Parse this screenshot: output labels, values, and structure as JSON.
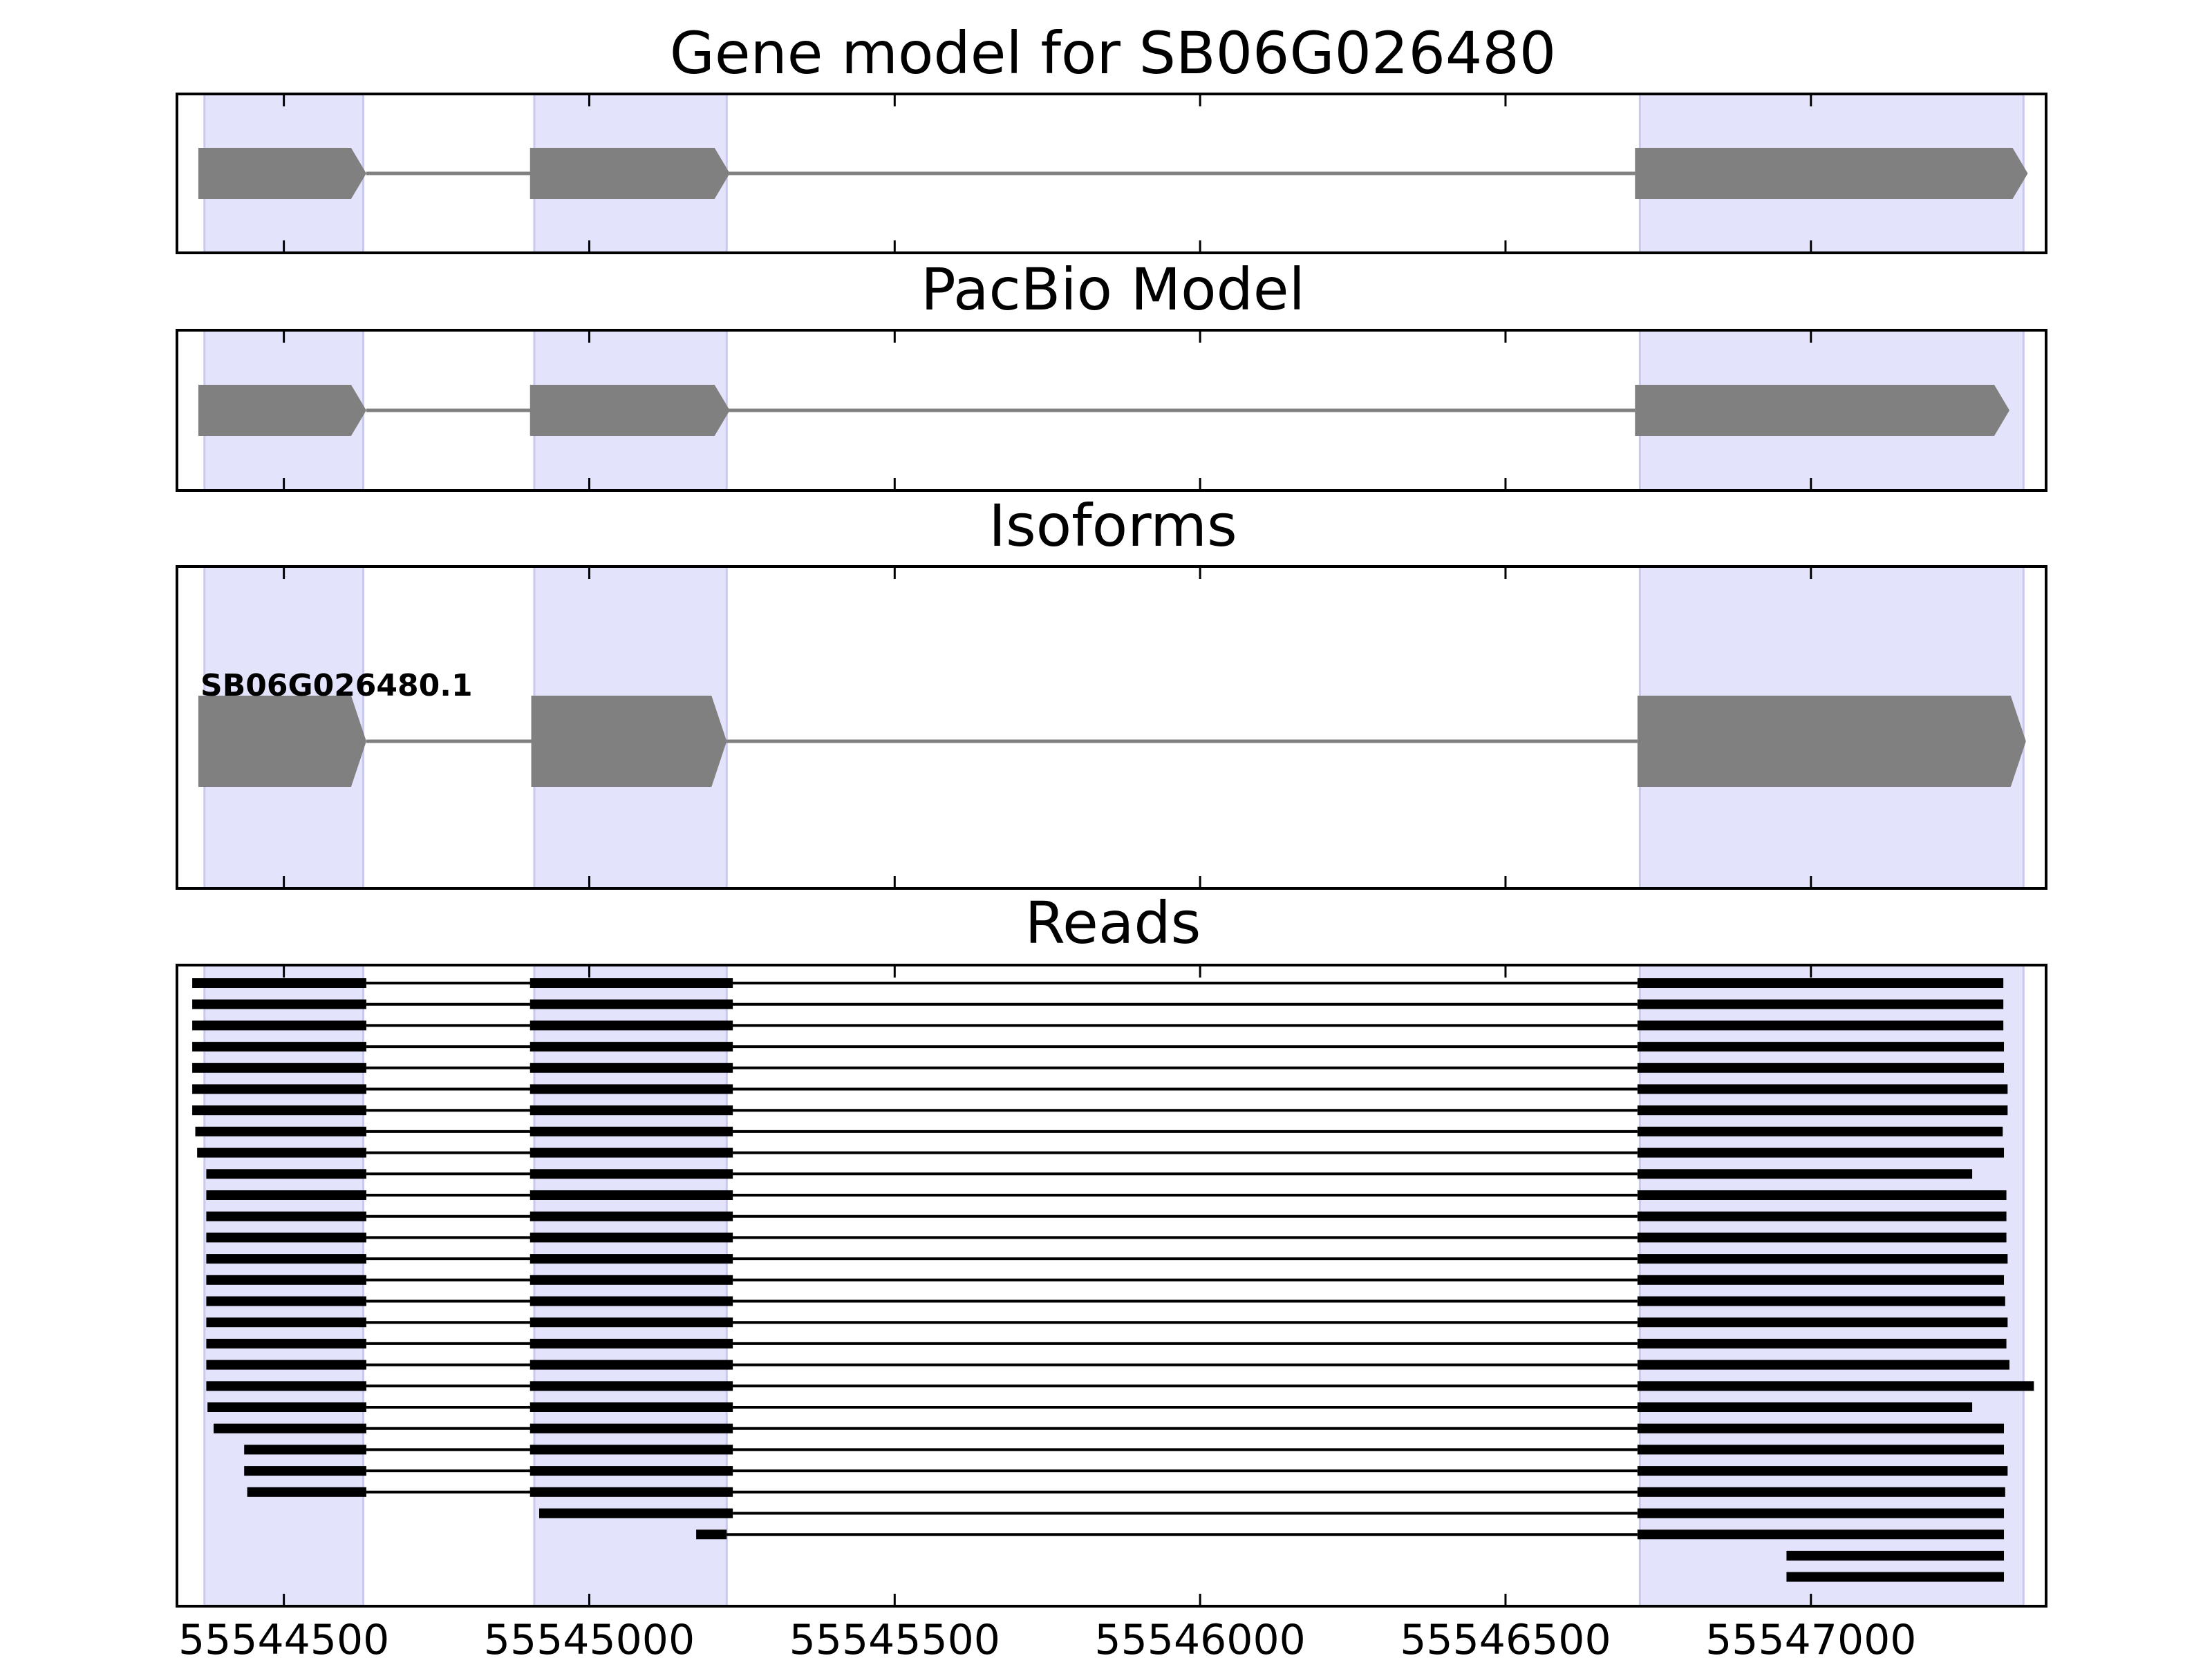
{
  "chart_data": {
    "type": "gene-structure",
    "xlim": [
      55544325,
      55547385
    ],
    "xticks": [
      55544500,
      55545000,
      55545500,
      55546000,
      55546500,
      55547000
    ],
    "exon_highlight_color": "#e3e3fc",
    "exon_highlights": [
      [
        55544370,
        55544630
      ],
      [
        55544910,
        55545225
      ],
      [
        55546720,
        55547348
      ]
    ],
    "model_color": "#808080",
    "read_color": "#000000",
    "panels": [
      {
        "title": "Gene model for SB06G026480",
        "kind": "model",
        "exons": [
          [
            55544360,
            55544635
          ],
          [
            55544903,
            55545230
          ],
          [
            55546712,
            55547355
          ]
        ],
        "strand": "+"
      },
      {
        "title": "PacBio Model",
        "kind": "model",
        "exons": [
          [
            55544360,
            55544635
          ],
          [
            55544903,
            55545230
          ],
          [
            55546712,
            55547325
          ]
        ],
        "strand": "+"
      },
      {
        "title": "Isoforms",
        "kind": "isoform",
        "isoform_name": "SB06G026480.1",
        "exons": [
          [
            55544360,
            55544635
          ],
          [
            55544905,
            55545225
          ],
          [
            55546716,
            55547352
          ]
        ],
        "strand": "+"
      },
      {
        "title": "Reads",
        "kind": "reads",
        "reads": [
          [
            [
              55544350,
              55544635
            ],
            [
              55544903,
              55545235
            ],
            [
              55546716,
              55547315
            ]
          ],
          [
            [
              55544350,
              55544635
            ],
            [
              55544903,
              55545235
            ],
            [
              55546716,
              55547315
            ]
          ],
          [
            [
              55544350,
              55544635
            ],
            [
              55544903,
              55545235
            ],
            [
              55546716,
              55547315
            ]
          ],
          [
            [
              55544350,
              55544635
            ],
            [
              55544903,
              55545235
            ],
            [
              55546716,
              55547316
            ]
          ],
          [
            [
              55544350,
              55544635
            ],
            [
              55544903,
              55545235
            ],
            [
              55546716,
              55547316
            ]
          ],
          [
            [
              55544350,
              55544635
            ],
            [
              55544903,
              55545235
            ],
            [
              55546716,
              55547322
            ]
          ],
          [
            [
              55544350,
              55544635
            ],
            [
              55544903,
              55545235
            ],
            [
              55546716,
              55547322
            ]
          ],
          [
            [
              55544355,
              55544635
            ],
            [
              55544903,
              55545235
            ],
            [
              55546716,
              55547314
            ]
          ],
          [
            [
              55544358,
              55544635
            ],
            [
              55544903,
              55545235
            ],
            [
              55546716,
              55547316
            ]
          ],
          [
            [
              55544373,
              55544635
            ],
            [
              55544903,
              55545235
            ],
            [
              55546716,
              55547264
            ]
          ],
          [
            [
              55544373,
              55544635
            ],
            [
              55544903,
              55545235
            ],
            [
              55546716,
              55547320
            ]
          ],
          [
            [
              55544373,
              55544635
            ],
            [
              55544903,
              55545235
            ],
            [
              55546716,
              55547320
            ]
          ],
          [
            [
              55544373,
              55544635
            ],
            [
              55544903,
              55545235
            ],
            [
              55546716,
              55547320
            ]
          ],
          [
            [
              55544373,
              55544635
            ],
            [
              55544903,
              55545235
            ],
            [
              55546716,
              55547322
            ]
          ],
          [
            [
              55544373,
              55544635
            ],
            [
              55544903,
              55545235
            ],
            [
              55546716,
              55547316
            ]
          ],
          [
            [
              55544373,
              55544635
            ],
            [
              55544903,
              55545235
            ],
            [
              55546716,
              55547318
            ]
          ],
          [
            [
              55544373,
              55544635
            ],
            [
              55544903,
              55545235
            ],
            [
              55546716,
              55547322
            ]
          ],
          [
            [
              55544373,
              55544635
            ],
            [
              55544903,
              55545235
            ],
            [
              55546716,
              55547320
            ]
          ],
          [
            [
              55544373,
              55544635
            ],
            [
              55544903,
              55545235
            ],
            [
              55546716,
              55547325
            ]
          ],
          [
            [
              55544373,
              55544635
            ],
            [
              55544903,
              55545235
            ],
            [
              55546716,
              55547365
            ]
          ],
          [
            [
              55544375,
              55544635
            ],
            [
              55544903,
              55545235
            ],
            [
              55546716,
              55547264
            ]
          ],
          [
            [
              55544385,
              55544635
            ],
            [
              55544903,
              55545235
            ],
            [
              55546716,
              55547316
            ]
          ],
          [
            [
              55544435,
              55544635
            ],
            [
              55544903,
              55545235
            ],
            [
              55546716,
              55547316
            ]
          ],
          [
            [
              55544435,
              55544635
            ],
            [
              55544903,
              55545235
            ],
            [
              55546716,
              55547322
            ]
          ],
          [
            [
              55544440,
              55544635
            ],
            [
              55544903,
              55545235
            ],
            [
              55546716,
              55547318
            ]
          ],
          [
            [
              55544918,
              55545235
            ],
            [
              55546716,
              55547316
            ]
          ],
          [
            [
              55545175,
              55545225
            ],
            [
              55546716,
              55547316
            ]
          ],
          [
            [
              55546960,
              55547316
            ]
          ],
          [
            [
              55546960,
              55547316
            ]
          ]
        ]
      }
    ]
  }
}
